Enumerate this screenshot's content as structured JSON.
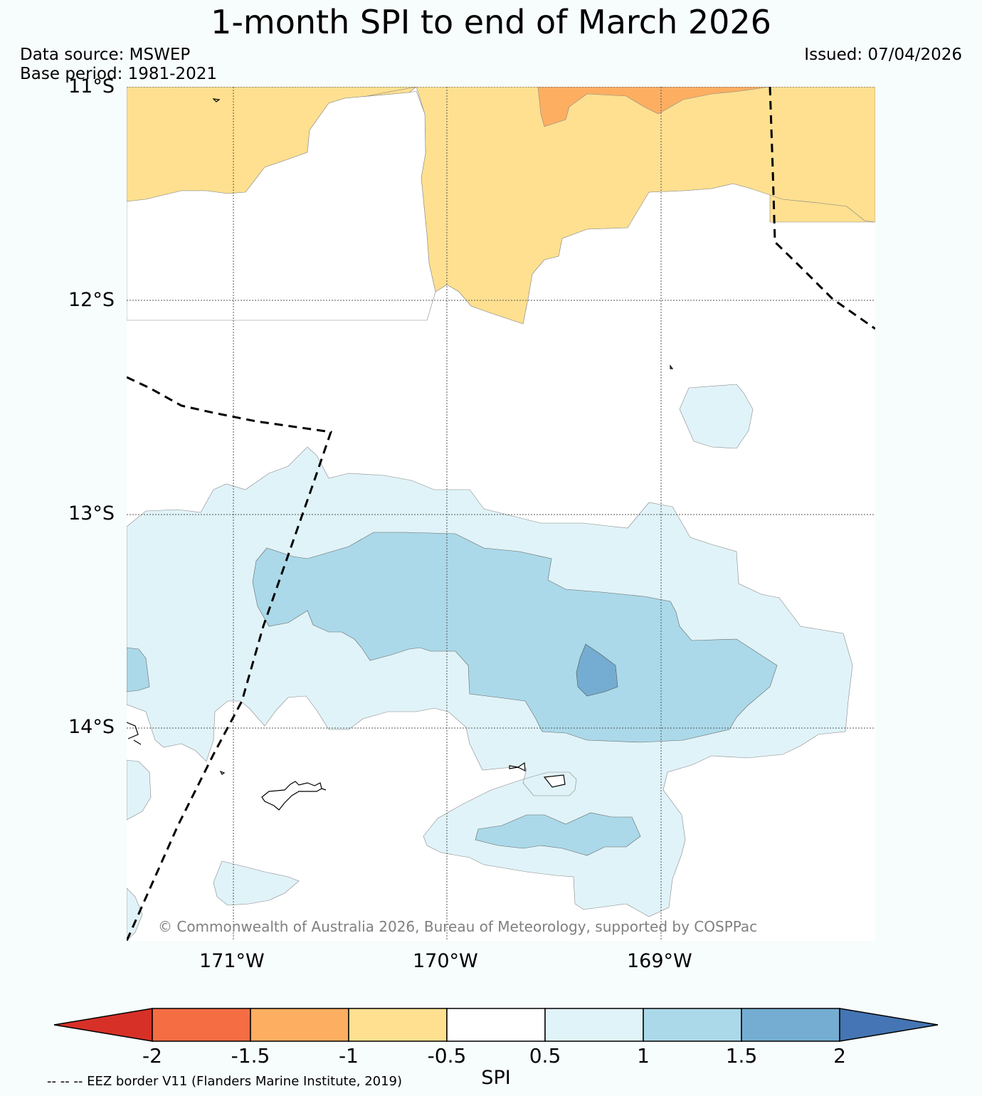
{
  "title": "1-month SPI to end of March 2026",
  "source_line": "Data source: MSWEP",
  "base_period_line": "Base period: 1981-2021",
  "issued_line": "Issued: 07/04/2026",
  "copyright": "© Commonwealth of Australia 2026, Bureau of Meteorology, supported by COSPPac",
  "eez_legend": "-- -- -- EEZ border V11 (Flanders Marine Institute, 2019)",
  "lat_labels": [
    "11°S",
    "12°S",
    "13°S",
    "14°S"
  ],
  "lon_labels": [
    "171°W",
    "170°W",
    "169°W"
  ],
  "colorbar": {
    "label": "SPI",
    "ticks": [
      "-2",
      "-1.5",
      "-1",
      "-0.5",
      "0.5",
      "1",
      "1.5",
      "2"
    ],
    "bins": [
      {
        "range": "-1.5 to -2",
        "color": "#f46d43"
      },
      {
        "range": "-1 to -1.5",
        "color": "#fdae61"
      },
      {
        "range": "-0.5 to -1",
        "color": "#fee090"
      },
      {
        "range": "-0.5 to 0.5",
        "color": "#ffffff"
      },
      {
        "range": "0.5 to 1",
        "color": "#e0f3f8"
      },
      {
        "range": "1 to 1.5",
        "color": "#abd9e9"
      },
      {
        "range": "1.5 to 2",
        "color": "#74add1"
      }
    ],
    "under_color": "#d73027",
    "over_color": "#4575b4"
  }
}
